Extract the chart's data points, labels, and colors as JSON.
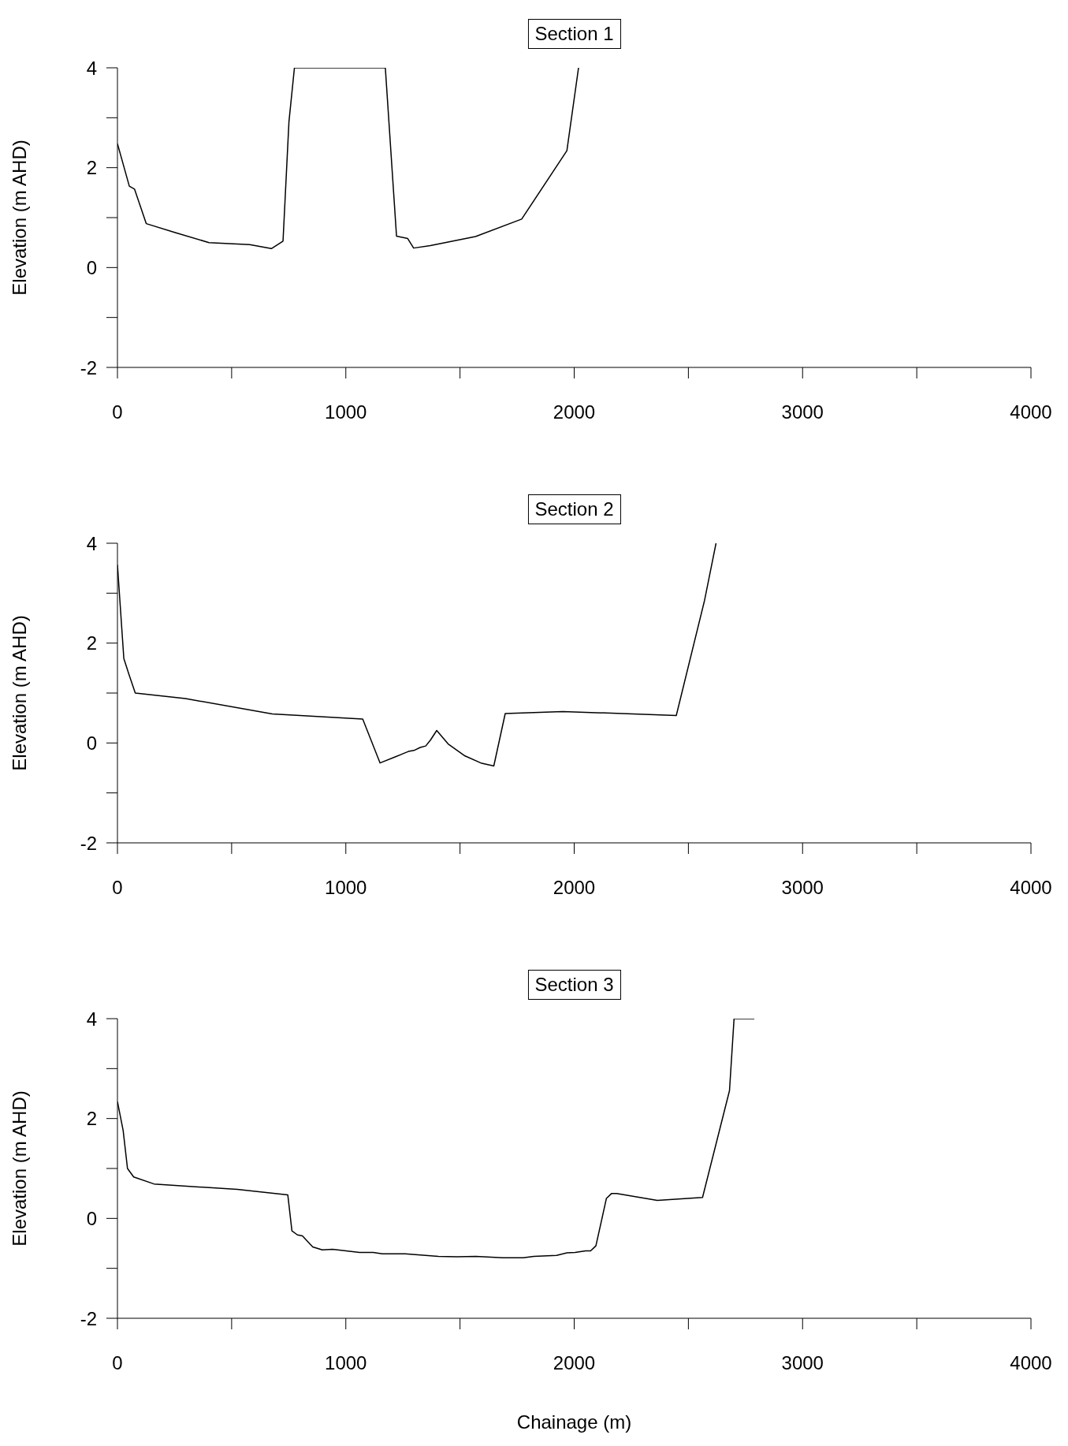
{
  "chart_data": [
    {
      "type": "line",
      "title": "Section 1",
      "ylabel": "Elevation (m AHD)",
      "xlim": [
        0,
        4000
      ],
      "ylim": [
        -2,
        4
      ],
      "xticks": [
        0,
        {
          "value": 500,
          "label": null
        },
        1000,
        {
          "value": 1500,
          "label": null
        },
        2000,
        {
          "value": 2500,
          "label": null
        },
        3000,
        {
          "value": 3500,
          "label": null
        },
        4000
      ],
      "yticks": [
        -2,
        {
          "value": -1,
          "label": null
        },
        0,
        {
          "value": 1,
          "label": null
        },
        2,
        {
          "value": 3,
          "label": null
        },
        4
      ],
      "grid": false,
      "marker": "none",
      "line_style": "solid",
      "series": [
        {
          "color": "#000000",
          "x": [
            0,
            52,
            75,
            126,
            253,
            401,
            579,
            674,
            725,
            751,
            775,
            1173,
            1222,
            1271,
            1297,
            1370,
            1568,
            1770,
            1968,
            2019
          ],
          "values": [
            2.48,
            1.63,
            1.57,
            0.88,
            0.7,
            0.5,
            0.46,
            0.38,
            0.53,
            2.92,
            4.0,
            4.0,
            0.63,
            0.58,
            0.39,
            0.44,
            0.62,
            0.97,
            2.34,
            4.0
          ]
        }
      ]
    },
    {
      "type": "line",
      "title": "Section 2",
      "ylabel": "Elevation (m AHD)",
      "xlim": [
        0,
        4000
      ],
      "ylim": [
        -2,
        4
      ],
      "xticks": [
        0,
        {
          "value": 500,
          "label": null
        },
        1000,
        {
          "value": 1500,
          "label": null
        },
        2000,
        {
          "value": 2500,
          "label": null
        },
        3000,
        {
          "value": 3500,
          "label": null
        },
        4000
      ],
      "yticks": [
        -2,
        {
          "value": -1,
          "label": null
        },
        0,
        {
          "value": 1,
          "label": null
        },
        2,
        {
          "value": 3,
          "label": null
        },
        4
      ],
      "grid": false,
      "marker": "none",
      "line_style": "solid",
      "series": [
        {
          "color": "#000000",
          "x": [
            0,
            28,
            50,
            78,
            298,
            678,
            1074,
            1150,
            1216,
            1274,
            1298,
            1326,
            1350,
            1371,
            1398,
            1448,
            1522,
            1591,
            1648,
            1698,
            1950,
            2447,
            2571,
            2621
          ],
          "values": [
            3.57,
            1.69,
            1.38,
            1.0,
            0.89,
            0.58,
            0.48,
            -0.4,
            -0.28,
            -0.17,
            -0.15,
            -0.09,
            -0.06,
            0.06,
            0.25,
            -0.02,
            -0.26,
            -0.4,
            -0.46,
            0.59,
            0.63,
            0.55,
            2.86,
            4.0
          ]
        }
      ]
    },
    {
      "type": "line",
      "title": "Section 3",
      "xlabel": "Chainage (m)",
      "ylabel": "Elevation (m AHD)",
      "xlim": [
        0,
        4000
      ],
      "ylim": [
        -2,
        4
      ],
      "xticks": [
        0,
        {
          "value": 500,
          "label": null
        },
        1000,
        {
          "value": 1500,
          "label": null
        },
        2000,
        {
          "value": 2500,
          "label": null
        },
        3000,
        {
          "value": 3500,
          "label": null
        },
        4000
      ],
      "yticks": [
        -2,
        {
          "value": -1,
          "label": null
        },
        0,
        {
          "value": 1,
          "label": null
        },
        2,
        {
          "value": 3,
          "label": null
        },
        4
      ],
      "grid": false,
      "marker": "none",
      "line_style": "solid",
      "series": [
        {
          "color": "#000000",
          "x": [
            0,
            25,
            44,
            71,
            160,
            525,
            746,
            764,
            788,
            810,
            855,
            897,
            942,
            1060,
            1120,
            1160,
            1260,
            1405,
            1487,
            1569,
            1687,
            1777,
            1823,
            1923,
            1968,
            2004,
            2050,
            2072,
            2095,
            2141,
            2164,
            2186,
            2364,
            2562,
            2680,
            2700,
            2789
          ],
          "values": [
            2.34,
            1.76,
            1.0,
            0.83,
            0.69,
            0.58,
            0.47,
            -0.25,
            -0.33,
            -0.35,
            -0.57,
            -0.63,
            -0.62,
            -0.68,
            -0.68,
            -0.71,
            -0.71,
            -0.76,
            -0.77,
            -0.76,
            -0.79,
            -0.79,
            -0.76,
            -0.74,
            -0.69,
            -0.68,
            -0.65,
            -0.65,
            -0.55,
            0.4,
            0.5,
            0.5,
            0.36,
            0.42,
            2.56,
            4.0,
            4.0
          ]
        }
      ]
    }
  ]
}
